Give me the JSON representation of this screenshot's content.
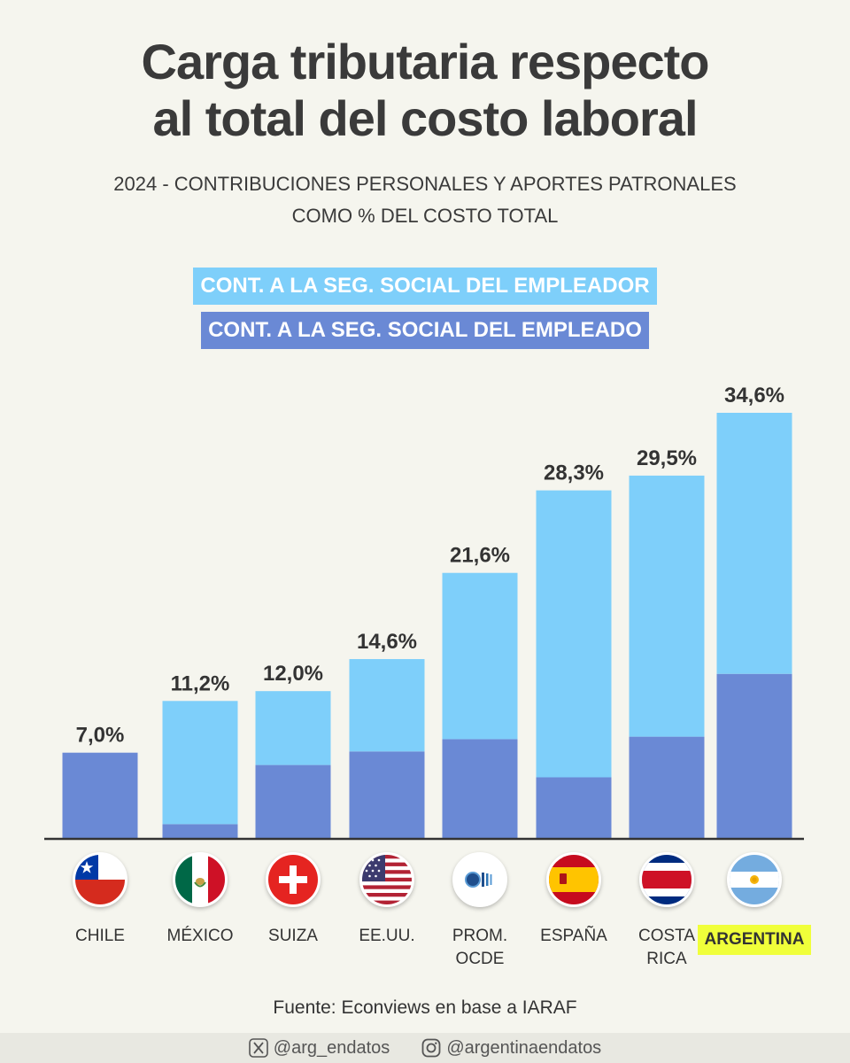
{
  "header": {
    "title_line1": "Carga tributaria respecto",
    "title_line2": "al total del costo laboral",
    "subtitle_line1": "2024 - CONTRIBUCIONES PERSONALES Y APORTES PATRONALES",
    "subtitle_line2": "COMO % DEL COSTO TOTAL"
  },
  "legend": {
    "employer": "CONT. A LA SEG. SOCIAL DEL EMPLEADOR",
    "employee": "CONT. A LA SEG. SOCIAL DEL EMPLEADO"
  },
  "colors": {
    "employer": "#7ecffa",
    "employee": "#6a89d5",
    "highlight": "#f0ff3a",
    "axis": "#333333"
  },
  "chart_data": {
    "type": "bar",
    "stacked": true,
    "title": "Carga tributaria respecto al total del costo laboral",
    "subtitle": "2024 - CONTRIBUCIONES PERSONALES Y APORTES PATRONALES COMO % DEL COSTO TOTAL",
    "xlabel": "",
    "ylabel": "",
    "ylim": [
      0,
      35
    ],
    "grid": false,
    "categories": [
      "CHILE",
      "MÉXICO",
      "SUIZA",
      "EE.UU.",
      "PROM. OCDE",
      "ESPAÑA",
      "COSTA RICA",
      "ARGENTINA"
    ],
    "series": [
      {
        "name": "CONT. A LA SEG. SOCIAL DEL EMPLEADO",
        "values": [
          7.0,
          1.2,
          6.0,
          7.1,
          8.1,
          5.0,
          8.3,
          13.4
        ]
      },
      {
        "name": "CONT. A LA SEG. SOCIAL DEL EMPLEADOR",
        "values": [
          0.0,
          10.0,
          6.0,
          7.5,
          13.5,
          23.3,
          21.2,
          21.2
        ]
      }
    ],
    "totals": [
      7.0,
      11.2,
      12.0,
      14.6,
      21.6,
      28.3,
      29.5,
      34.6
    ],
    "total_labels": [
      "7,0%",
      "11,2%",
      "12,0%",
      "14,6%",
      "21,6%",
      "28,3%",
      "29,5%",
      "34,6%"
    ],
    "highlighted_category": "ARGENTINA"
  },
  "countries": [
    {
      "label": "CHILE",
      "flag": "chile-flag-icon"
    },
    {
      "label": "MÉXICO",
      "flag": "mexico-flag-icon"
    },
    {
      "label": "SUIZA",
      "flag": "switzerland-flag-icon"
    },
    {
      "label": "EE.UU.",
      "flag": "usa-flag-icon"
    },
    {
      "label": "PROM.\nOCDE",
      "flag": "oecd-logo-icon"
    },
    {
      "label": "ESPAÑA",
      "flag": "spain-flag-icon"
    },
    {
      "label": "COSTA\nRICA",
      "flag": "costa-rica-flag-icon"
    },
    {
      "label": "ARGENTINA",
      "flag": "argentina-flag-icon"
    }
  ],
  "footer": {
    "source": "Fuente: Econviews en base a IARAF",
    "x_handle": "@arg_endatos",
    "instagram_handle": "@argentinaendatos"
  }
}
